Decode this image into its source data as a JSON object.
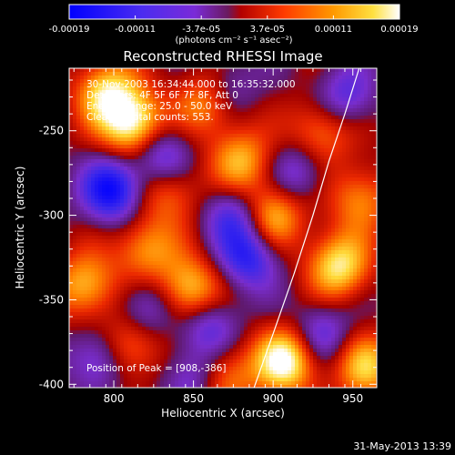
{
  "chart_data": {
    "type": "heatmap",
    "title": "Reconstructed RHESSI Image",
    "xlabel": "Heliocentric X (arcsec)",
    "ylabel": "Heliocentric Y (arcsec)",
    "xlim": [
      772,
      965
    ],
    "ylim": [
      -402,
      -213
    ],
    "x_ticks": [
      800,
      850,
      900,
      950
    ],
    "y_ticks": [
      -250,
      -300,
      -350,
      -400
    ],
    "colorbar": {
      "label": "(photons cm⁻² s⁻¹ asec⁻²)",
      "range": [
        -0.00019,
        0.00019
      ],
      "ticks": [
        "-0.00019",
        "-0.00011",
        "-3.7e-05",
        "3.7e-05",
        "0.00011",
        "0.00019"
      ],
      "colors": [
        "#0000ff",
        "#7a2bd8",
        "#b30000",
        "#ff3b00",
        "#ff9900",
        "#ffffff"
      ]
    },
    "annotations": {
      "time_range": "30-Nov-2003 16:34:44.000 to 16:35:32.000",
      "detectors": "Detectors: 4F 5F 6F 7F 8F, Att 0",
      "energy": "Energy Range: 25.0 - 50.0 keV",
      "clean": "Clean     Total counts: 553.",
      "peak": "Position of Peak = [908,-386]"
    },
    "limb_points": [
      [
        888,
        -402
      ],
      [
        900,
        -370
      ],
      [
        913,
        -335
      ],
      [
        925,
        -300
      ],
      [
        935,
        -268
      ],
      [
        945,
        -240
      ],
      [
        954,
        -213
      ]
    ],
    "hot_spots": [
      {
        "x": 812,
        "y": -246,
        "strength": 1.0
      },
      {
        "x": 908,
        "y": -386,
        "strength": 1.0
      },
      {
        "x": 795,
        "y": -227,
        "strength": 0.75
      },
      {
        "x": 860,
        "y": -232,
        "strength": 0.7
      },
      {
        "x": 848,
        "y": -345,
        "strength": 0.8
      },
      {
        "x": 880,
        "y": -268,
        "strength": 0.65
      },
      {
        "x": 941,
        "y": -330,
        "strength": 0.85
      },
      {
        "x": 782,
        "y": -342,
        "strength": 0.7
      },
      {
        "x": 820,
        "y": -320,
        "strength": 0.6
      },
      {
        "x": 900,
        "y": -300,
        "strength": 0.7
      },
      {
        "x": 930,
        "y": -250,
        "strength": 0.55
      },
      {
        "x": 958,
        "y": -390,
        "strength": 0.7
      },
      {
        "x": 870,
        "y": -395,
        "strength": 0.55
      },
      {
        "x": 835,
        "y": -285,
        "strength": 0.5
      },
      {
        "x": 810,
        "y": -378,
        "strength": 0.6
      },
      {
        "x": 955,
        "y": -290,
        "strength": 0.55
      }
    ],
    "cold_spots": [
      {
        "x": 799,
        "y": -285,
        "strength": 1.0
      },
      {
        "x": 870,
        "y": -225,
        "strength": 0.55
      },
      {
        "x": 830,
        "y": -265,
        "strength": 0.7
      },
      {
        "x": 875,
        "y": -300,
        "strength": 0.6
      },
      {
        "x": 860,
        "y": -365,
        "strength": 0.6
      },
      {
        "x": 885,
        "y": -325,
        "strength": 0.75
      },
      {
        "x": 820,
        "y": -355,
        "strength": 0.55
      },
      {
        "x": 790,
        "y": -385,
        "strength": 0.6
      },
      {
        "x": 930,
        "y": -370,
        "strength": 0.55
      },
      {
        "x": 915,
        "y": -275,
        "strength": 0.5
      },
      {
        "x": 945,
        "y": -230,
        "strength": 0.55
      },
      {
        "x": 850,
        "y": -395,
        "strength": 0.5
      }
    ]
  },
  "footer": {
    "timestamp": "31-May-2013 13:39"
  }
}
